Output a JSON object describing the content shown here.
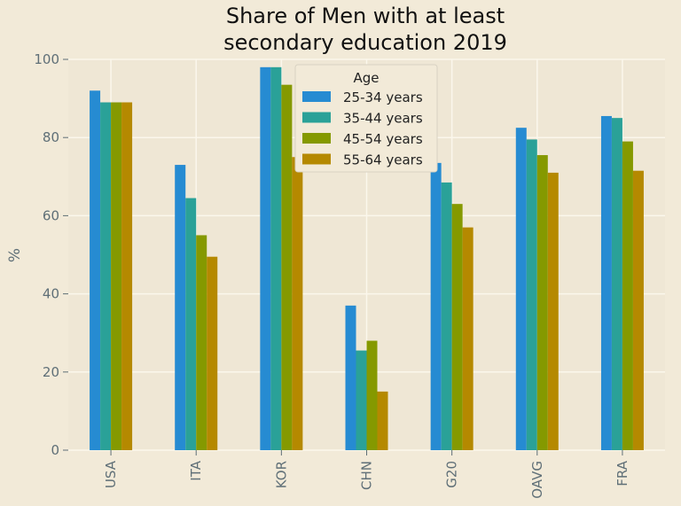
{
  "colors": {
    "background": "#f2ead8",
    "plot_background": "#efe7d5",
    "grid": "#fbf7ec",
    "series": [
      "#268bd2",
      "#2aa198",
      "#859900",
      "#b58900"
    ]
  },
  "chart_data": {
    "type": "bar",
    "title": "Share of Men with at least secondary education 2019",
    "title_lines": [
      "Share of Men with at least",
      "secondary education 2019"
    ],
    "xlabel": "",
    "ylabel": "%",
    "ylim": [
      0,
      100
    ],
    "yticks": [
      0,
      20,
      40,
      60,
      80,
      100
    ],
    "grid": true,
    "legend_title": "Age",
    "legend_position": "top-center",
    "categories": [
      "USA",
      "ITA",
      "KOR",
      "CHN",
      "G20",
      "OAVG",
      "FRA"
    ],
    "series": [
      {
        "name": "25-34 years",
        "values": [
          92,
          73,
          98,
          37,
          73.5,
          82.5,
          85.5
        ]
      },
      {
        "name": "35-44 years",
        "values": [
          89,
          64.5,
          98,
          25.5,
          68.5,
          79.5,
          85
        ]
      },
      {
        "name": "45-54 years",
        "values": [
          89,
          55,
          93.5,
          28,
          63,
          75.5,
          79
        ]
      },
      {
        "name": "55-64 years",
        "values": [
          89,
          49.5,
          75,
          15,
          57,
          71,
          71.5
        ]
      }
    ]
  }
}
